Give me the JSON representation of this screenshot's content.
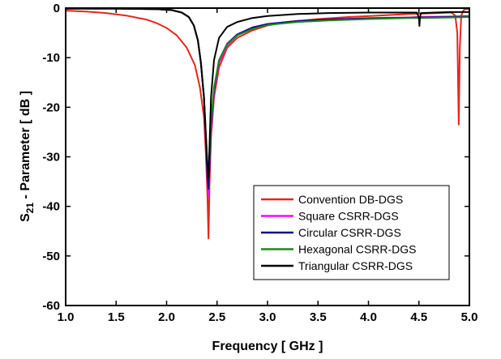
{
  "chart_data": {
    "type": "line",
    "title": "",
    "xlabel": "Frequency [ GHz ]",
    "ylabel_main": "S",
    "ylabel_sub": "21",
    "ylabel_rest": " - Parameter [ dB ]",
    "xlim": [
      1.0,
      5.0
    ],
    "ylim": [
      -60,
      0
    ],
    "xticks": [
      "1.0",
      "1.5",
      "2.0",
      "2.5",
      "3.0",
      "3.5",
      "4.0",
      "4.5",
      "5.0"
    ],
    "xtick_values": [
      1.0,
      1.5,
      2.0,
      2.5,
      3.0,
      3.5,
      4.0,
      4.5,
      5.0
    ],
    "yticks": [
      "0",
      "-10",
      "-20",
      "-30",
      "-40",
      "-50",
      "-60"
    ],
    "ytick_values": [
      0,
      -10,
      -20,
      -30,
      -40,
      -50,
      -60
    ],
    "grid": false,
    "legend_position": "bottom-right",
    "series": [
      {
        "name": "Convention DB-DGS",
        "color": "#e8241c",
        "points": [
          [
            1.0,
            -0.5
          ],
          [
            1.2,
            -0.7
          ],
          [
            1.4,
            -1.0
          ],
          [
            1.6,
            -1.5
          ],
          [
            1.8,
            -2.3
          ],
          [
            1.9,
            -3.0
          ],
          [
            2.0,
            -4.0
          ],
          [
            2.1,
            -5.5
          ],
          [
            2.2,
            -8.0
          ],
          [
            2.28,
            -11.5
          ],
          [
            2.33,
            -16.0
          ],
          [
            2.37,
            -22.0
          ],
          [
            2.39,
            -30.0
          ],
          [
            2.405,
            -38.0
          ],
          [
            2.415,
            -46.5
          ],
          [
            2.425,
            -36.0
          ],
          [
            2.44,
            -26.0
          ],
          [
            2.47,
            -18.0
          ],
          [
            2.52,
            -12.0
          ],
          [
            2.6,
            -8.0
          ],
          [
            2.7,
            -6.0
          ],
          [
            2.85,
            -4.5
          ],
          [
            3.0,
            -3.5
          ],
          [
            3.2,
            -2.8
          ],
          [
            3.5,
            -2.2
          ],
          [
            3.8,
            -1.8
          ],
          [
            4.1,
            -1.5
          ],
          [
            4.4,
            -1.2
          ],
          [
            4.7,
            -1.0
          ],
          [
            4.82,
            -0.9
          ],
          [
            4.86,
            -1.5
          ],
          [
            4.88,
            -5.0
          ],
          [
            4.895,
            -23.5
          ],
          [
            4.905,
            -8.0
          ],
          [
            4.92,
            -1.5
          ],
          [
            4.94,
            -0.5
          ],
          [
            4.96,
            -0.2
          ],
          [
            5.0,
            -0.2
          ]
        ]
      },
      {
        "name": "Square CSRR-DGS",
        "color": "#ff00ff",
        "points": [
          [
            1.0,
            -0.1
          ],
          [
            1.5,
            -0.1
          ],
          [
            1.9,
            -0.2
          ],
          [
            2.05,
            -0.4
          ],
          [
            2.15,
            -0.9
          ],
          [
            2.22,
            -1.8
          ],
          [
            2.27,
            -3.5
          ],
          [
            2.31,
            -6.5
          ],
          [
            2.34,
            -11.0
          ],
          [
            2.37,
            -18.0
          ],
          [
            2.39,
            -27.0
          ],
          [
            2.405,
            -35.0
          ],
          [
            2.415,
            -38.0
          ],
          [
            2.425,
            -33.0
          ],
          [
            2.44,
            -25.0
          ],
          [
            2.47,
            -17.0
          ],
          [
            2.52,
            -11.0
          ],
          [
            2.6,
            -7.5
          ],
          [
            2.7,
            -5.5
          ],
          [
            2.85,
            -4.0
          ],
          [
            3.0,
            -3.2
          ],
          [
            3.3,
            -2.6
          ],
          [
            3.6,
            -2.3
          ],
          [
            4.0,
            -2.0
          ],
          [
            4.4,
            -1.9
          ],
          [
            4.5,
            -1.8
          ],
          [
            4.8,
            -1.7
          ],
          [
            5.0,
            -1.6
          ]
        ]
      },
      {
        "name": "Circular CSRR-DGS",
        "color": "#0a0a8c",
        "points": [
          [
            1.0,
            -0.1
          ],
          [
            1.5,
            -0.1
          ],
          [
            1.9,
            -0.2
          ],
          [
            2.05,
            -0.4
          ],
          [
            2.15,
            -0.9
          ],
          [
            2.22,
            -1.8
          ],
          [
            2.27,
            -3.5
          ],
          [
            2.31,
            -6.5
          ],
          [
            2.34,
            -11.0
          ],
          [
            2.37,
            -18.0
          ],
          [
            2.39,
            -27.0
          ],
          [
            2.405,
            -34.0
          ],
          [
            2.415,
            -36.5
          ],
          [
            2.425,
            -32.0
          ],
          [
            2.44,
            -24.0
          ],
          [
            2.47,
            -16.5
          ],
          [
            2.52,
            -10.5
          ],
          [
            2.6,
            -7.2
          ],
          [
            2.7,
            -5.3
          ],
          [
            2.85,
            -3.9
          ],
          [
            3.0,
            -3.2
          ],
          [
            3.3,
            -2.6
          ],
          [
            3.6,
            -2.3
          ],
          [
            4.0,
            -2.1
          ],
          [
            4.4,
            -1.9
          ],
          [
            4.5,
            -1.9
          ],
          [
            4.8,
            -1.8
          ],
          [
            5.0,
            -1.7
          ]
        ]
      },
      {
        "name": "Hexagonal CSRR-DGS",
        "color": "#1a8a1a",
        "points": [
          [
            1.0,
            -0.1
          ],
          [
            1.5,
            -0.1
          ],
          [
            1.9,
            -0.2
          ],
          [
            2.05,
            -0.4
          ],
          [
            2.15,
            -0.9
          ],
          [
            2.22,
            -1.8
          ],
          [
            2.27,
            -3.5
          ],
          [
            2.31,
            -6.5
          ],
          [
            2.34,
            -11.0
          ],
          [
            2.37,
            -18.0
          ],
          [
            2.39,
            -26.0
          ],
          [
            2.405,
            -32.0
          ],
          [
            2.415,
            -34.0
          ],
          [
            2.425,
            -30.0
          ],
          [
            2.44,
            -23.0
          ],
          [
            2.47,
            -16.0
          ],
          [
            2.52,
            -10.5
          ],
          [
            2.6,
            -7.3
          ],
          [
            2.7,
            -5.5
          ],
          [
            2.85,
            -4.2
          ],
          [
            3.0,
            -3.4
          ],
          [
            3.3,
            -2.8
          ],
          [
            3.6,
            -2.5
          ],
          [
            4.0,
            -2.2
          ],
          [
            4.4,
            -2.0
          ],
          [
            4.5,
            -2.0
          ],
          [
            4.8,
            -1.9
          ],
          [
            5.0,
            -1.8
          ]
        ]
      },
      {
        "name": "Triangular CSRR-DGS",
        "color": "#000000",
        "points": [
          [
            1.0,
            -0.1
          ],
          [
            1.5,
            -0.1
          ],
          [
            1.9,
            -0.2
          ],
          [
            2.05,
            -0.4
          ],
          [
            2.15,
            -0.9
          ],
          [
            2.22,
            -1.8
          ],
          [
            2.27,
            -3.5
          ],
          [
            2.31,
            -6.5
          ],
          [
            2.34,
            -11.0
          ],
          [
            2.37,
            -18.0
          ],
          [
            2.39,
            -26.0
          ],
          [
            2.405,
            -32.0
          ],
          [
            2.415,
            -34.0
          ],
          [
            2.425,
            -28.0
          ],
          [
            2.44,
            -18.0
          ],
          [
            2.47,
            -10.5
          ],
          [
            2.52,
            -6.0
          ],
          [
            2.6,
            -3.8
          ],
          [
            2.7,
            -2.8
          ],
          [
            2.85,
            -2.0
          ],
          [
            3.0,
            -1.6
          ],
          [
            3.3,
            -1.2
          ],
          [
            3.6,
            -1.0
          ],
          [
            4.0,
            -0.9
          ],
          [
            4.4,
            -0.9
          ],
          [
            4.48,
            -0.9
          ],
          [
            4.5,
            -2.0
          ],
          [
            4.505,
            -3.6
          ],
          [
            4.51,
            -2.0
          ],
          [
            4.52,
            -1.0
          ],
          [
            4.8,
            -0.8
          ],
          [
            5.0,
            -0.8
          ]
        ]
      }
    ]
  }
}
